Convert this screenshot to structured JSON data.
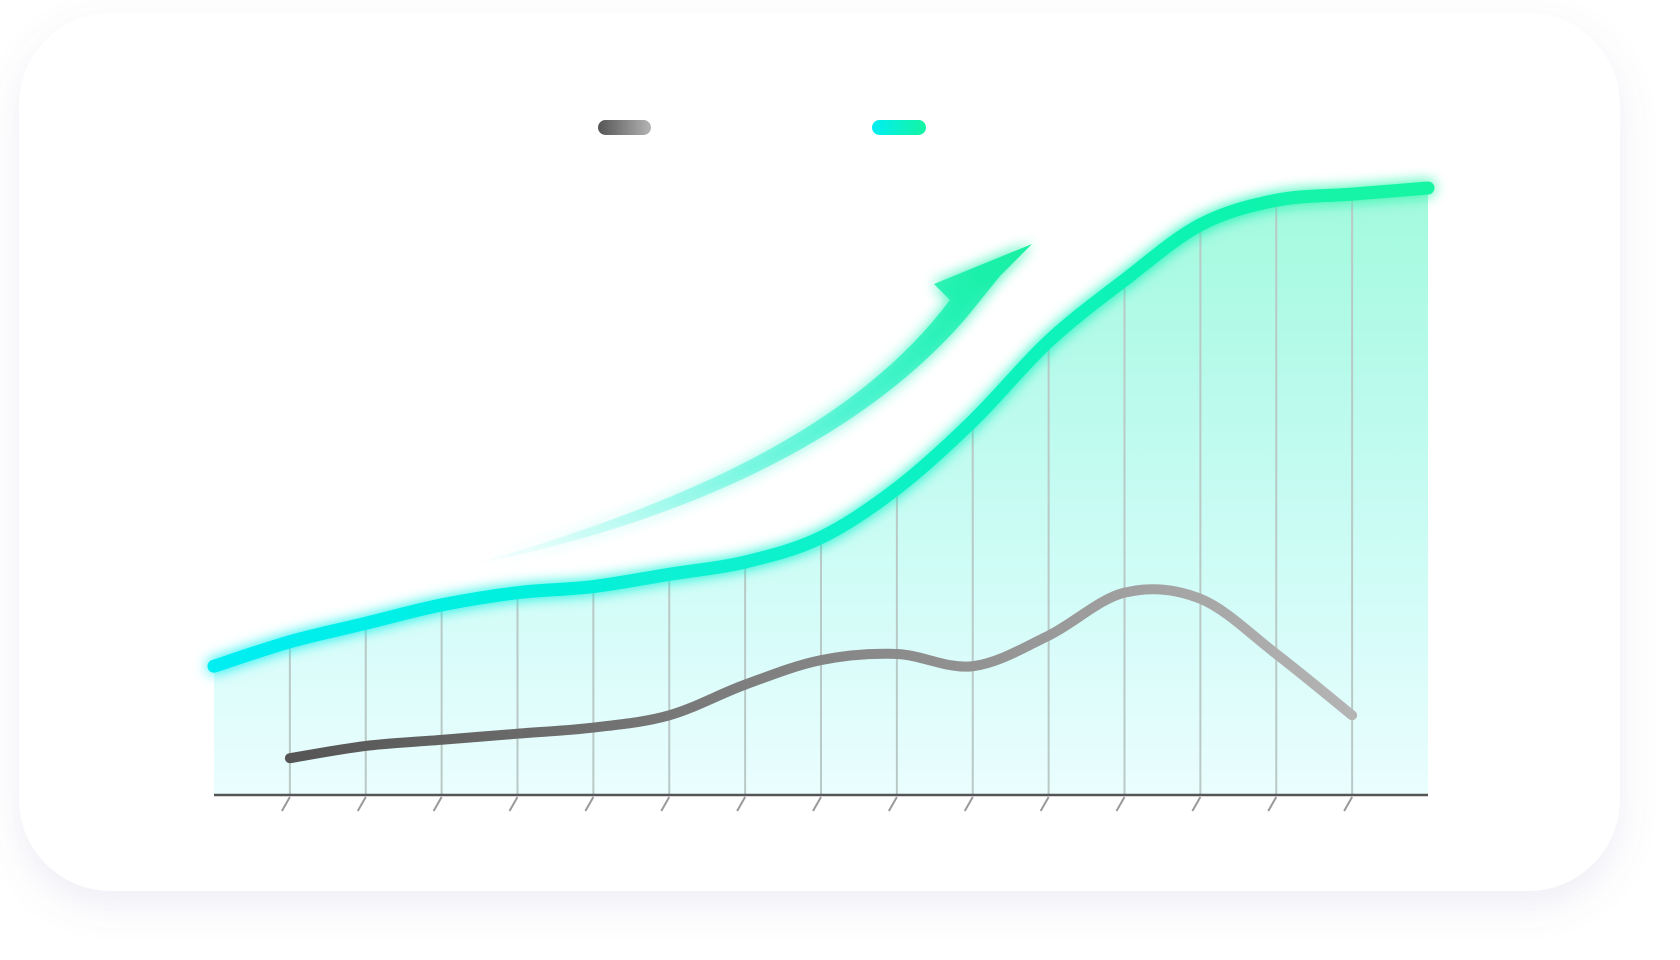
{
  "chart_data": {
    "type": "line",
    "categories": [
      null,
      null,
      null,
      null,
      null,
      null,
      null,
      null,
      null,
      null,
      null,
      null,
      null,
      null,
      null,
      null,
      null
    ],
    "series": [
      {
        "color": "#8a8a8a",
        "values": [
          null,
          6,
          8,
          9,
          10,
          11,
          13,
          18,
          22,
          23,
          21,
          26,
          33,
          32,
          23,
          13,
          null
        ]
      },
      {
        "color": "#0ff2c4",
        "values": [
          21,
          25,
          28,
          31,
          33,
          34,
          36,
          38,
          42,
          50,
          61,
          74,
          84,
          93,
          97,
          98,
          99
        ]
      }
    ]
  }
}
